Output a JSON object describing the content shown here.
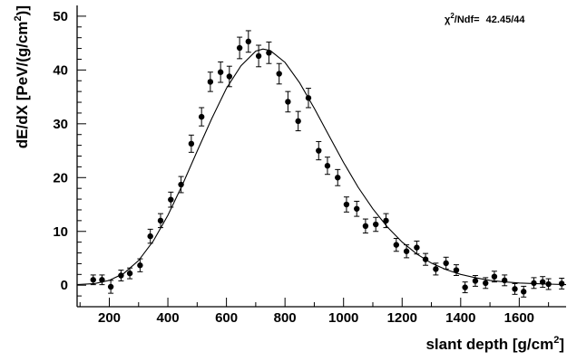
{
  "chart_data": {
    "type": "scatter",
    "xlabel": "slant depth [g/cm",
    "xlabel_sup": "2",
    "xlabel_close": "]",
    "ylabel": "dE/dX [PeV/(g/cm",
    "ylabel_sup": "2",
    "ylabel_close": ")]",
    "xlim": [
      90,
      1760
    ],
    "ylim": [
      -4,
      52
    ],
    "x_ticks": [
      200,
      400,
      600,
      800,
      1000,
      1200,
      1400,
      1600
    ],
    "y_ticks": [
      0,
      10,
      20,
      30,
      40,
      50
    ],
    "grid": false,
    "stat_box": {
      "chi_symbol": "χ",
      "chi_sup": "2",
      "label": "/Ndf=",
      "value": "42.45/44"
    },
    "series": [
      {
        "kind": "data_points_with_errors",
        "x": [
          145,
          175,
          205,
          240,
          270,
          305,
          340,
          375,
          410,
          445,
          480,
          515,
          545,
          580,
          610,
          645,
          675,
          710,
          745,
          780,
          810,
          845,
          880,
          915,
          945,
          980,
          1010,
          1045,
          1075,
          1110,
          1145,
          1180,
          1215,
          1250,
          1280,
          1315,
          1350,
          1385,
          1415,
          1450,
          1485,
          1515,
          1550,
          1585,
          1615,
          1650,
          1680,
          1700,
          1745
        ],
        "y": [
          1,
          1,
          -0.3,
          1.8,
          2.2,
          3.7,
          9.1,
          12.0,
          15.9,
          18.7,
          26.3,
          31.3,
          37.8,
          39.6,
          38.8,
          44.1,
          45.3,
          42.6,
          43.2,
          39.3,
          34.1,
          30.5,
          34.8,
          25.0,
          22.2,
          20.0,
          15.0,
          14.2,
          11.0,
          11.3,
          12.0,
          7.5,
          6.3,
          7.0,
          4.8,
          3.0,
          4.1,
          2.8,
          -0.4,
          0.8,
          0.4,
          1.6,
          0.9,
          -0.7,
          -1.2,
          0.4,
          0.6,
          0.2,
          0.3
        ],
        "y_err": [
          0.9,
          0.9,
          1.2,
          1.0,
          1.0,
          1.2,
          1.3,
          1.3,
          1.4,
          1.5,
          1.6,
          1.7,
          1.8,
          1.9,
          1.9,
          2.0,
          2.0,
          2.0,
          2.0,
          1.9,
          1.9,
          1.8,
          1.8,
          1.7,
          1.6,
          1.5,
          1.4,
          1.4,
          1.3,
          1.3,
          1.3,
          1.2,
          1.2,
          1.2,
          1.1,
          1.1,
          1.1,
          1.0,
          1.0,
          1.0,
          1.0,
          1.0,
          1.0,
          1.0,
          1.0,
          1.0,
          1.0,
          1.0,
          1.0
        ]
      },
      {
        "kind": "fit_curve",
        "x": [
          90,
          150,
          200,
          250,
          300,
          350,
          400,
          450,
          500,
          550,
          600,
          650,
          700,
          725,
          750,
          800,
          850,
          900,
          950,
          1000,
          1050,
          1100,
          1150,
          1200,
          1250,
          1300,
          1350,
          1400,
          1450,
          1500,
          1550,
          1600,
          1650,
          1700,
          1760
        ],
        "y": [
          0.1,
          0.3,
          0.9,
          2.2,
          4.6,
          8.2,
          13.0,
          18.7,
          24.9,
          31.0,
          36.6,
          40.8,
          43.5,
          43.9,
          43.6,
          41.4,
          37.6,
          32.9,
          27.8,
          22.8,
          18.2,
          14.2,
          10.8,
          8.0,
          5.8,
          4.1,
          2.9,
          2.0,
          1.4,
          0.9,
          0.6,
          0.4,
          0.3,
          0.2,
          0.1
        ]
      }
    ]
  }
}
